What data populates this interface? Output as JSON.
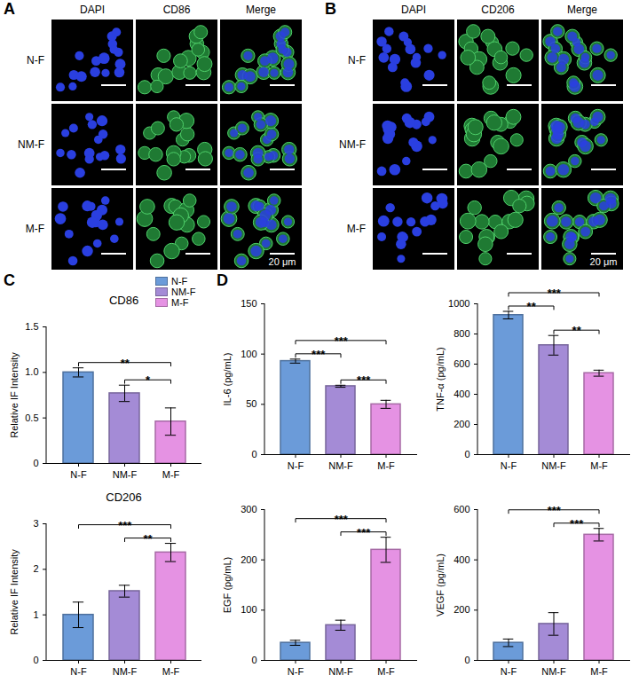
{
  "images": [
    {
      "letter": "A",
      "columns": [
        "DAPI",
        "CD86",
        "Merge"
      ],
      "rows": [
        "N-F",
        "NM-F",
        "M-F"
      ],
      "scale_bar": "20 μm"
    },
    {
      "letter": "B",
      "columns": [
        "DAPI",
        "CD206",
        "Merge"
      ],
      "rows": [
        "N-F",
        "NM-F",
        "M-F"
      ],
      "scale_bar": "20 μm"
    }
  ],
  "chart_data": [
    {
      "letter": "C",
      "type": "bar",
      "title": "CD86",
      "y_label": "Relative IF Intensity",
      "categories": [
        "N-F",
        "NM-F",
        "M-F"
      ],
      "values": [
        1.0,
        0.77,
        0.46
      ],
      "errors": [
        0.05,
        0.09,
        0.15
      ],
      "colors": [
        "#6b9bd9",
        "#a48bd6",
        "#e592e3"
      ],
      "ylim": [
        0,
        1.5
      ],
      "yticks": [
        0,
        0.5,
        {
          "value": 1,
          "label": "1.0"
        },
        1.5
      ],
      "significance": [
        {
          "between": [
            "N-F",
            "M-F"
          ],
          "label": "**"
        },
        {
          "between": [
            "NM-F",
            "M-F"
          ],
          "label": "*"
        }
      ],
      "legend": "top-right"
    },
    {
      "type": "bar",
      "title": "CD206",
      "y_label": "Relative IF Intensity",
      "categories": [
        "N-F",
        "NM-F",
        "M-F"
      ],
      "values": [
        1.0,
        1.52,
        2.37
      ],
      "errors": [
        0.28,
        0.13,
        0.2
      ],
      "colors": [
        "#6b9bd9",
        "#a48bd6",
        "#e592e3"
      ],
      "ylim": [
        0,
        3
      ],
      "yticks": [
        0,
        1,
        2,
        3
      ],
      "significance": [
        {
          "between": [
            "N-F",
            "M-F"
          ],
          "label": "***"
        },
        {
          "between": [
            "NM-F",
            "M-F"
          ],
          "label": "**"
        }
      ]
    },
    {
      "letter": "D",
      "type": "bar",
      "y_label": "IL-6 (pg/mL)",
      "categories": [
        "N-F",
        "NM-F",
        "M-F"
      ],
      "values": [
        93,
        68,
        50
      ],
      "errors": [
        2,
        1,
        4
      ],
      "colors": [
        "#6b9bd9",
        "#a48bd6",
        "#e592e3"
      ],
      "ylim": [
        0,
        150
      ],
      "yticks": [
        0,
        50,
        100,
        150
      ],
      "significance": [
        {
          "between": [
            "N-F",
            "NM-F"
          ],
          "label": "***"
        },
        {
          "between": [
            "N-F",
            "M-F"
          ],
          "label": "***"
        },
        {
          "between": [
            "NM-F",
            "M-F"
          ],
          "label": "***"
        }
      ]
    },
    {
      "type": "bar",
      "y_label": "TNF-α (pg/mL)",
      "categories": [
        "N-F",
        "NM-F",
        "M-F"
      ],
      "values": [
        925,
        725,
        540
      ],
      "errors": [
        25,
        65,
        20
      ],
      "colors": [
        "#6b9bd9",
        "#a48bd6",
        "#e592e3"
      ],
      "ylim": [
        0,
        1000
      ],
      "yticks": [
        0,
        200,
        400,
        600,
        800,
        1000
      ],
      "significance": [
        {
          "between": [
            "N-F",
            "NM-F"
          ],
          "label": "**"
        },
        {
          "between": [
            "N-F",
            "M-F"
          ],
          "label": "***"
        },
        {
          "between": [
            "NM-F",
            "M-F"
          ],
          "label": "**"
        }
      ]
    },
    {
      "type": "bar",
      "y_label": "EGF (pg/mL)",
      "categories": [
        "N-F",
        "NM-F",
        "M-F"
      ],
      "values": [
        35,
        70,
        220
      ],
      "errors": [
        5,
        10,
        25
      ],
      "colors": [
        "#6b9bd9",
        "#a48bd6",
        "#e592e3"
      ],
      "ylim": [
        0,
        300
      ],
      "yticks": [
        0,
        100,
        200,
        300
      ],
      "significance": [
        {
          "between": [
            "N-F",
            "M-F"
          ],
          "label": "***"
        },
        {
          "between": [
            "NM-F",
            "M-F"
          ],
          "label": "***"
        }
      ]
    },
    {
      "type": "bar",
      "y_label": "VEGF (pg/mL)",
      "categories": [
        "N-F",
        "NM-F",
        "M-F"
      ],
      "values": [
        70,
        145,
        500
      ],
      "errors": [
        15,
        45,
        25
      ],
      "colors": [
        "#6b9bd9",
        "#a48bd6",
        "#e592e3"
      ],
      "ylim": [
        0,
        600
      ],
      "yticks": [
        0,
        200,
        400,
        600
      ],
      "significance": [
        {
          "between": [
            "N-F",
            "M-F"
          ],
          "label": "***"
        },
        {
          "between": [
            "NM-F",
            "M-F"
          ],
          "label": "***"
        }
      ]
    }
  ]
}
